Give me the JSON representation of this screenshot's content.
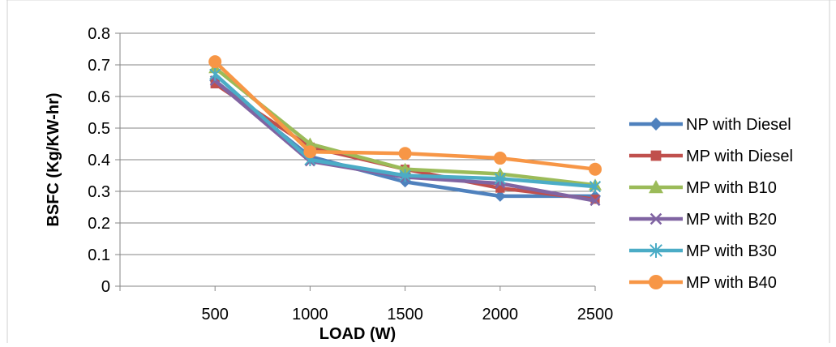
{
  "chart_data": {
    "type": "line",
    "title": "",
    "xlabel": "LOAD (W)",
    "ylabel": "BSFC (Kg/KW-hr)",
    "x": [
      500,
      1000,
      1500,
      2000,
      2500
    ],
    "categories": [
      "500",
      "1000",
      "1500",
      "2000",
      "2500"
    ],
    "ylim": [
      0,
      0.8
    ],
    "yticks": [
      "0",
      "0.1",
      "0.2",
      "0.3",
      "0.4",
      "0.5",
      "0.6",
      "0.7",
      "0.8"
    ],
    "grid": "horizontal major gridlines",
    "legend_position": "right",
    "series": [
      {
        "name": "NP with Diesel",
        "values": [
          0.65,
          0.41,
          0.33,
          0.285,
          0.285
        ],
        "color": "#4F81BD",
        "marker": "diamond"
      },
      {
        "name": "MP with Diesel",
        "values": [
          0.64,
          0.44,
          0.37,
          0.31,
          0.275
        ],
        "color": "#C0504D",
        "marker": "square"
      },
      {
        "name": "MP with B10",
        "values": [
          0.69,
          0.45,
          0.37,
          0.355,
          0.32
        ],
        "color": "#9BBB59",
        "marker": "triangle"
      },
      {
        "name": "MP with B20",
        "values": [
          0.65,
          0.395,
          0.345,
          0.325,
          0.27
        ],
        "color": "#8064A2",
        "marker": "x"
      },
      {
        "name": "MP with B30",
        "values": [
          0.67,
          0.4,
          0.35,
          0.34,
          0.315
        ],
        "color": "#4BACC6",
        "marker": "star"
      },
      {
        "name": "MP with B40",
        "values": [
          0.71,
          0.425,
          0.42,
          0.405,
          0.37
        ],
        "color": "#F79646",
        "marker": "circle"
      }
    ]
  }
}
